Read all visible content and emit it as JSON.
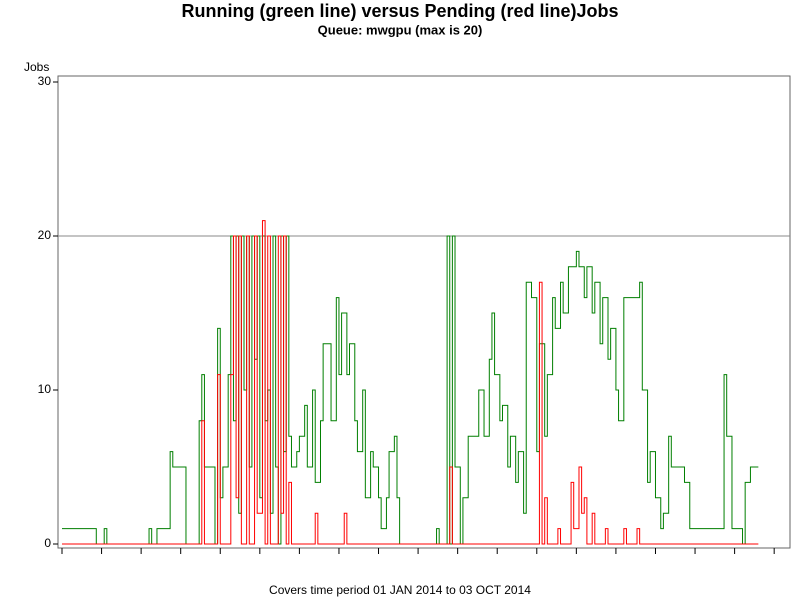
{
  "chart_data": {
    "type": "line",
    "title": "Running (green line) versus Pending (red line)Jobs",
    "subtitle": "Queue: mwgpu (max is 20)",
    "y_label": "Jobs",
    "footnote": "Covers time period 01 JAN 2014 to 03 OCT 2014",
    "step": true,
    "reference_line": 20,
    "xlim": [
      0,
      276
    ],
    "xticks": [
      0,
      15,
      30,
      45,
      60,
      75,
      90,
      105,
      120,
      135,
      150,
      165,
      180,
      195,
      210,
      225,
      240,
      255,
      270
    ],
    "ylim": [
      0,
      30
    ],
    "yticks": [
      0,
      10,
      20,
      30
    ],
    "series": [
      {
        "name": "Running",
        "color": "#007f00",
        "x": [
          0,
          13,
          16,
          17,
          33,
          34,
          36,
          41,
          42,
          45,
          47,
          52,
          53,
          54,
          57,
          58,
          59,
          60,
          61,
          63,
          64,
          65,
          66,
          67,
          68,
          69,
          70,
          71,
          72,
          73,
          74,
          75,
          76,
          77,
          78,
          79,
          80,
          81,
          82,
          83,
          84,
          85,
          86,
          87,
          89,
          90,
          92,
          93,
          95,
          96,
          98,
          99,
          101,
          102,
          104,
          105,
          106,
          108,
          109,
          111,
          112,
          114,
          115,
          117,
          118,
          120,
          121,
          123,
          124,
          126,
          127,
          128,
          142,
          143,
          146,
          147,
          148,
          149,
          151,
          152,
          154,
          156,
          158,
          160,
          162,
          163,
          164,
          166,
          167,
          169,
          170,
          172,
          173,
          175,
          176,
          178,
          180,
          181,
          183,
          184,
          186,
          187,
          189,
          190,
          192,
          193,
          195,
          196,
          198,
          199,
          201,
          202,
          204,
          205,
          207,
          208,
          210,
          211,
          213,
          215,
          217,
          219,
          220,
          222,
          223,
          225,
          227,
          228,
          230,
          231,
          234,
          236,
          238,
          242,
          249,
          251,
          252,
          254,
          256,
          258,
          259,
          261,
          264
        ],
        "values": [
          1,
          0,
          1,
          0,
          1,
          0,
          1,
          6,
          5,
          5,
          0,
          8,
          11,
          5,
          5,
          0,
          14,
          3,
          5,
          11,
          20,
          8,
          20,
          2,
          20,
          10,
          20,
          5,
          20,
          12,
          20,
          3,
          20,
          8,
          10,
          2,
          20,
          5,
          0,
          20,
          6,
          20,
          7,
          5,
          6,
          7,
          9,
          5,
          10,
          4,
          8,
          13,
          13,
          8,
          16,
          11,
          15,
          11,
          13,
          8,
          6,
          10,
          3,
          6,
          5,
          3,
          1,
          3,
          6,
          7,
          3,
          0,
          1,
          0,
          20,
          0,
          20,
          5,
          0,
          3,
          7,
          7,
          10,
          7,
          12,
          15,
          11,
          8,
          9,
          5,
          7,
          4,
          6,
          2,
          17,
          16,
          6,
          13,
          7,
          11,
          16,
          14,
          17,
          15,
          18,
          18,
          19,
          18,
          16,
          18,
          15,
          17,
          13,
          16,
          12,
          14,
          10,
          8,
          16,
          16,
          16,
          17,
          10,
          4,
          6,
          3,
          1,
          2,
          7,
          5,
          5,
          4,
          1,
          1,
          1,
          11,
          7,
          1,
          1,
          0,
          4,
          5,
          5
        ]
      },
      {
        "name": "Pending",
        "color": "#ff0000",
        "x": [
          0,
          52,
          53,
          54,
          59,
          60,
          63,
          64,
          65,
          66,
          67,
          68,
          70,
          71,
          73,
          74,
          76,
          77,
          78,
          79,
          82,
          83,
          84,
          85,
          86,
          87,
          96,
          97,
          107,
          108,
          147,
          148,
          181,
          182,
          183,
          184,
          188,
          189,
          193,
          194,
          196,
          197,
          198,
          199,
          201,
          202,
          206,
          207,
          213,
          214,
          218,
          219,
          264
        ],
        "values": [
          0,
          0,
          8,
          0,
          11,
          0,
          0,
          11,
          20,
          3,
          20,
          0,
          20,
          0,
          20,
          2,
          21,
          0,
          20,
          0,
          20,
          2,
          20,
          0,
          4,
          0,
          2,
          0,
          2,
          0,
          5,
          0,
          17,
          0,
          3,
          0,
          1,
          0,
          4,
          1,
          5,
          2,
          3,
          0,
          2,
          0,
          1,
          0,
          1,
          0,
          1,
          0,
          0
        ]
      }
    ]
  }
}
